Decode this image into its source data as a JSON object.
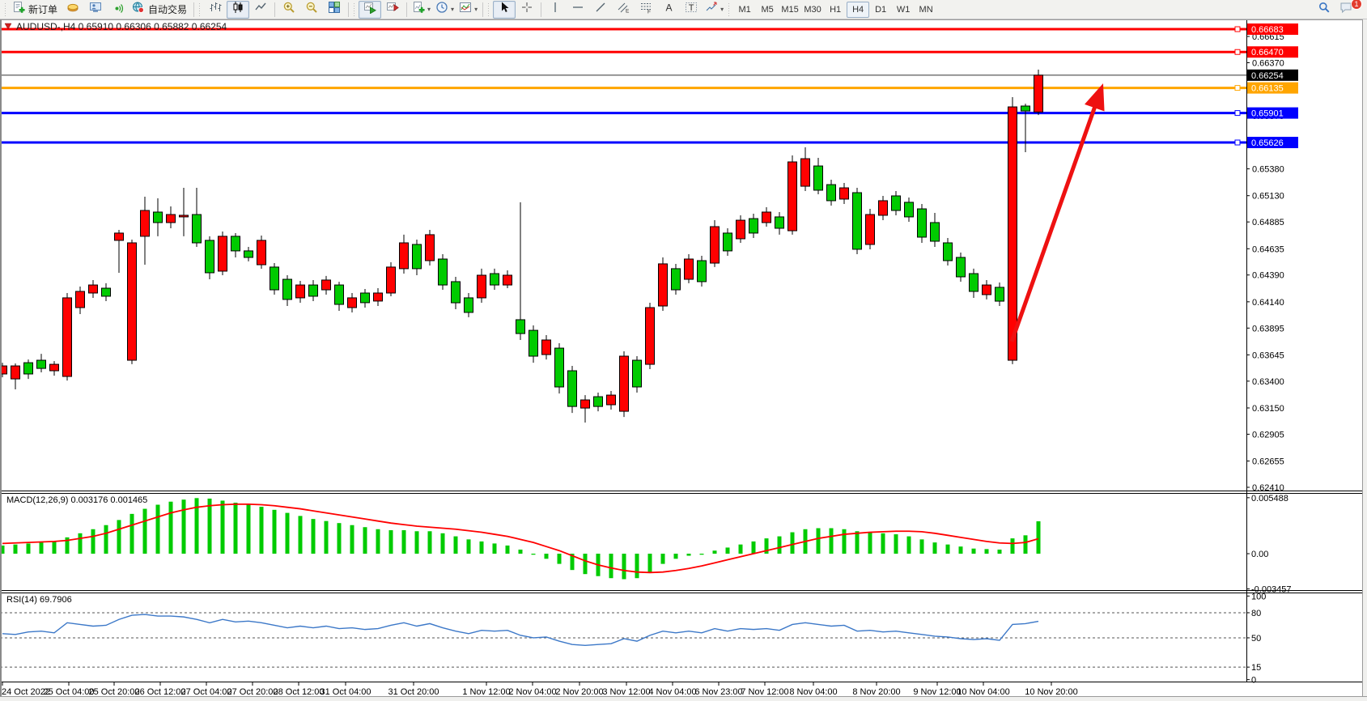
{
  "toolbar": {
    "new_order_label": "新订单",
    "autotrading_label": "自动交易",
    "timeframes": [
      "M1",
      "M5",
      "M15",
      "M30",
      "H1",
      "H4",
      "D1",
      "W1",
      "MN"
    ],
    "active_timeframe": "H4",
    "notification_count": "1"
  },
  "chart": {
    "title": "AUDUSD-,H4 0.65910 0.66306 0.65882 0.66254",
    "symbol": "AUDUSD-",
    "timeframe": "H4",
    "ohlc": {
      "open": "0.65910",
      "high": "0.66306",
      "low": "0.65882",
      "close": "0.66254"
    }
  },
  "chart_data": {
    "type": "candlestick",
    "title": "AUDUSD-,H4",
    "up_color": "#FF0000",
    "down_color": "#00CB00",
    "wick_color": "#000000",
    "current_price": "0.66254",
    "y_ticks": [
      "0.66615",
      "0.66370",
      "0.66125",
      "0.65875",
      "0.65630",
      "0.65380",
      "0.65130",
      "0.64885",
      "0.64635",
      "0.64390",
      "0.64140",
      "0.63895",
      "0.63645",
      "0.63400",
      "0.63150",
      "0.62905",
      "0.62655",
      "0.62410"
    ],
    "levels": [
      {
        "price": 0.66683,
        "label": "0.66683",
        "color": "#FF0000",
        "width": 3,
        "badge": "#FF0000"
      },
      {
        "price": 0.6647,
        "label": "0.66470",
        "color": "#FF0000",
        "width": 3,
        "badge": "#FF0000"
      },
      {
        "price": 0.66254,
        "label": "0.66254",
        "color": "#333333",
        "width": 1,
        "badge": "#000000",
        "current": true
      },
      {
        "price": 0.66135,
        "label": "0.66135",
        "color": "#FFA500",
        "width": 3,
        "badge": "#FFA500"
      },
      {
        "price": 0.65901,
        "label": "0.65901",
        "color": "#0000FF",
        "width": 3,
        "badge": "#0000FF"
      },
      {
        "price": 0.65626,
        "label": "0.65626",
        "color": "#0000FF",
        "width": 3,
        "badge": "#0000FF"
      }
    ],
    "time_labels": [
      "24 Oct 2022",
      "25 Oct 04:00",
      "25 Oct 20:00",
      "26 Oct 12:00",
      "27 Oct 04:00",
      "27 Oct 20:00",
      "28 Oct 12:00",
      "31 Oct 04:00",
      "31 Oct 20:00",
      "1 Nov 12:00",
      "2 Nov 04:00",
      "2 Nov 20:00",
      "3 Nov 12:00",
      "4 Nov 04:00",
      "6 Nov 23:00",
      "7 Nov 12:00",
      "8 Nov 04:00",
      "8 Nov 20:00",
      "9 Nov 12:00",
      "10 Nov 04:00",
      "10 Nov 20:00"
    ],
    "candles": [
      [
        0.63467,
        0.63572,
        0.63436,
        0.63542
      ],
      [
        0.63421,
        0.63565,
        0.63323,
        0.63542
      ],
      [
        0.63572,
        0.63602,
        0.63421,
        0.63467
      ],
      [
        0.63595,
        0.63655,
        0.63482,
        0.63519
      ],
      [
        0.63497,
        0.63587,
        0.63451,
        0.63557
      ],
      [
        0.63444,
        0.64222,
        0.63406,
        0.64177
      ],
      [
        0.64086,
        0.64282,
        0.64026,
        0.64237
      ],
      [
        0.64222,
        0.64343,
        0.64177,
        0.64297
      ],
      [
        0.64267,
        0.64313,
        0.64146,
        0.64192
      ],
      [
        0.64713,
        0.64811,
        0.64411,
        0.64781
      ],
      [
        0.63595,
        0.6472,
        0.63558,
        0.6469
      ],
      [
        0.64751,
        0.6512,
        0.64486,
        0.64992
      ],
      [
        0.64977,
        0.65105,
        0.64751,
        0.64879
      ],
      [
        0.64879,
        0.6503,
        0.64826,
        0.64954
      ],
      [
        0.64932,
        0.65203,
        0.64751,
        0.64947
      ],
      [
        0.64954,
        0.65203,
        0.64652,
        0.6469
      ],
      [
        0.64713,
        0.64751,
        0.6435,
        0.64411
      ],
      [
        0.64426,
        0.64796,
        0.64388,
        0.64751
      ],
      [
        0.64751,
        0.64781,
        0.64554,
        0.64615
      ],
      [
        0.64615,
        0.64652,
        0.64517,
        0.64554
      ],
      [
        0.64486,
        0.64758,
        0.64448,
        0.64713
      ],
      [
        0.64464,
        0.64501,
        0.64207,
        0.64252
      ],
      [
        0.6435,
        0.64388,
        0.64101,
        0.64162
      ],
      [
        0.64177,
        0.64335,
        0.64131,
        0.64297
      ],
      [
        0.64297,
        0.64343,
        0.64146,
        0.64192
      ],
      [
        0.64252,
        0.64381,
        0.64207,
        0.64343
      ],
      [
        0.64297,
        0.64327,
        0.64056,
        0.64116
      ],
      [
        0.64086,
        0.64222,
        0.64041,
        0.64177
      ],
      [
        0.64222,
        0.6426,
        0.64086,
        0.64132
      ],
      [
        0.64147,
        0.64267,
        0.64101,
        0.64222
      ],
      [
        0.64222,
        0.64509,
        0.64192,
        0.64464
      ],
      [
        0.64449,
        0.64766,
        0.64403,
        0.6469
      ],
      [
        0.64675,
        0.6472,
        0.64388,
        0.64449
      ],
      [
        0.64524,
        0.64811,
        0.64479,
        0.64766
      ],
      [
        0.64539,
        0.64584,
        0.64252,
        0.64297
      ],
      [
        0.64328,
        0.64373,
        0.64071,
        0.64131
      ],
      [
        0.64177,
        0.64222,
        0.63996,
        0.64041
      ],
      [
        0.64177,
        0.64449,
        0.64131,
        0.64388
      ],
      [
        0.64403,
        0.64449,
        0.64252,
        0.64297
      ],
      [
        0.64297,
        0.64433,
        0.64267,
        0.64388
      ],
      [
        0.63973,
        0.65068,
        0.63784,
        0.63844
      ],
      [
        0.63874,
        0.6392,
        0.63572,
        0.63633
      ],
      [
        0.63648,
        0.63829,
        0.63602,
        0.63784
      ],
      [
        0.63708,
        0.63754,
        0.63285,
        0.63346
      ],
      [
        0.63497,
        0.63542,
        0.63104,
        0.63164
      ],
      [
        0.63149,
        0.6327,
        0.63014,
        0.63225
      ],
      [
        0.63255,
        0.63293,
        0.63119,
        0.63164
      ],
      [
        0.6318,
        0.63308,
        0.63135,
        0.6327
      ],
      [
        0.63119,
        0.63678,
        0.63066,
        0.63633
      ],
      [
        0.63595,
        0.63633,
        0.63293,
        0.63346
      ],
      [
        0.63557,
        0.64131,
        0.63512,
        0.64086
      ],
      [
        0.64101,
        0.64554,
        0.64056,
        0.64494
      ],
      [
        0.64449,
        0.64494,
        0.64207,
        0.64252
      ],
      [
        0.6435,
        0.64584,
        0.64313,
        0.64539
      ],
      [
        0.64524,
        0.64569,
        0.64282,
        0.64328
      ],
      [
        0.64501,
        0.64901,
        0.64464,
        0.64841
      ],
      [
        0.64781,
        0.64826,
        0.64569,
        0.64615
      ],
      [
        0.64728,
        0.64947,
        0.6469,
        0.64901
      ],
      [
        0.64916,
        0.64962,
        0.64735,
        0.64781
      ],
      [
        0.64879,
        0.65022,
        0.64841,
        0.64977
      ],
      [
        0.64932,
        0.64977,
        0.64766,
        0.64826
      ],
      [
        0.64803,
        0.65505,
        0.64766,
        0.65445
      ],
      [
        0.65218,
        0.65581,
        0.65173,
        0.65475
      ],
      [
        0.65407,
        0.65483,
        0.65143,
        0.65181
      ],
      [
        0.65233,
        0.65279,
        0.65037,
        0.65083
      ],
      [
        0.65098,
        0.65249,
        0.65052,
        0.65203
      ],
      [
        0.65158,
        0.65203,
        0.64584,
        0.6463
      ],
      [
        0.64675,
        0.65007,
        0.6463,
        0.64954
      ],
      [
        0.64947,
        0.65128,
        0.64901,
        0.65083
      ],
      [
        0.65128,
        0.65173,
        0.64947,
        0.64992
      ],
      [
        0.65068,
        0.65113,
        0.64886,
        0.64932
      ],
      [
        0.65007,
        0.65052,
        0.6469,
        0.64743
      ],
      [
        0.64879,
        0.64969,
        0.64652,
        0.64705
      ],
      [
        0.6469,
        0.64735,
        0.64479,
        0.64524
      ],
      [
        0.64554,
        0.64599,
        0.64328,
        0.64373
      ],
      [
        0.64403,
        0.64449,
        0.64177,
        0.64237
      ],
      [
        0.64207,
        0.64343,
        0.64162,
        0.64297
      ],
      [
        0.64275,
        0.6432,
        0.64101,
        0.64146
      ],
      [
        0.63595,
        0.66049,
        0.63558,
        0.65958
      ],
      [
        0.65966,
        0.65988,
        0.65536,
        0.6592
      ],
      [
        0.6591,
        0.66306,
        0.65882,
        0.66254
      ]
    ],
    "macd": {
      "display": "MACD(12,26,9) 0.003176 0.001465",
      "params": "12,26,9",
      "value": 0.003176,
      "signal_value": 0.001465,
      "hist_color": "#00CB00",
      "signal_color": "#FF0000",
      "scale_labels": [
        "0.005488",
        "0.00",
        "-0.003457"
      ],
      "scale": {
        "max": 0.005488,
        "min": -0.003457
      },
      "histogram": [
        0.0008,
        0.0009,
        0.001,
        0.0011,
        0.0012,
        0.0016,
        0.002,
        0.0024,
        0.0028,
        0.0033,
        0.0039,
        0.0044,
        0.0048,
        0.0051,
        0.0053,
        0.00545,
        0.0054,
        0.0052,
        0.005,
        0.0048,
        0.0046,
        0.0043,
        0.004,
        0.0037,
        0.0034,
        0.0032,
        0.003,
        0.0028,
        0.0026,
        0.0024,
        0.0023,
        0.0023,
        0.0022,
        0.0022,
        0.002,
        0.0017,
        0.0014,
        0.0012,
        0.001,
        0.0008,
        0.0004,
        -0.0001,
        -0.0005,
        -0.001,
        -0.0016,
        -0.002,
        -0.0022,
        -0.0024,
        -0.0025,
        -0.0024,
        -0.0018,
        -0.001,
        -0.0005,
        -0.0002,
        -0.0001,
        0.0003,
        0.0006,
        0.0009,
        0.0012,
        0.0015,
        0.0017,
        0.0021,
        0.0024,
        0.0025,
        0.0025,
        0.0024,
        0.0022,
        0.0021,
        0.002,
        0.0019,
        0.0017,
        0.0014,
        0.0011,
        0.0009,
        0.0007,
        0.0005,
        0.00045,
        0.0004,
        0.0015,
        0.0018,
        0.003176
      ],
      "signal": [
        0.001,
        0.00105,
        0.0011,
        0.00115,
        0.0012,
        0.0013,
        0.0015,
        0.0017,
        0.002,
        0.0024,
        0.0028,
        0.0032,
        0.0036,
        0.004,
        0.0043,
        0.00455,
        0.0047,
        0.0048,
        0.00485,
        0.00485,
        0.0048,
        0.0047,
        0.00455,
        0.0044,
        0.0042,
        0.004,
        0.0038,
        0.0036,
        0.0034,
        0.0032,
        0.003,
        0.00285,
        0.0027,
        0.0026,
        0.0025,
        0.0024,
        0.00225,
        0.0021,
        0.0019,
        0.0017,
        0.0014,
        0.0011,
        0.0007,
        0.0003,
        -0.0002,
        -0.0007,
        -0.0011,
        -0.0014,
        -0.00165,
        -0.0018,
        -0.00185,
        -0.0018,
        -0.00165,
        -0.00145,
        -0.0012,
        -0.0009,
        -0.0006,
        -0.0003,
        0.0,
        0.0003,
        0.0006,
        0.0009,
        0.0012,
        0.0015,
        0.0017,
        0.0019,
        0.002,
        0.0021,
        0.00215,
        0.0022,
        0.0022,
        0.00215,
        0.002,
        0.0018,
        0.0016,
        0.0014,
        0.0012,
        0.00105,
        0.001,
        0.0011,
        0.001465
      ]
    },
    "rsi": {
      "display": "RSI(14) 69.7906",
      "period": "14",
      "value": 69.7906,
      "line_color": "#3C78C8",
      "levels": [
        80,
        50,
        15
      ],
      "scale_labels": [
        "100",
        "80",
        "50",
        "15",
        "0"
      ],
      "values": [
        55,
        54,
        57,
        58,
        56,
        68,
        66,
        64,
        65,
        72,
        77,
        78,
        76,
        76,
        75,
        72,
        68,
        72,
        69,
        70,
        68,
        65,
        62,
        64,
        62,
        64,
        61,
        62,
        60,
        61,
        65,
        68,
        64,
        67,
        62,
        58,
        55,
        59,
        58,
        59,
        53,
        50,
        51,
        46,
        42,
        41,
        42,
        43,
        49,
        46,
        53,
        58,
        56,
        58,
        56,
        61,
        58,
        61,
        60,
        61,
        59,
        66,
        68,
        66,
        64,
        65,
        58,
        59,
        57,
        58,
        56,
        54,
        52,
        51,
        49,
        48,
        49,
        47,
        66,
        67,
        69.79
      ]
    },
    "arrow": {
      "color": "#EE1111",
      "tail": [
        1250,
        422
      ],
      "tip": [
        1363,
        103
      ]
    }
  }
}
